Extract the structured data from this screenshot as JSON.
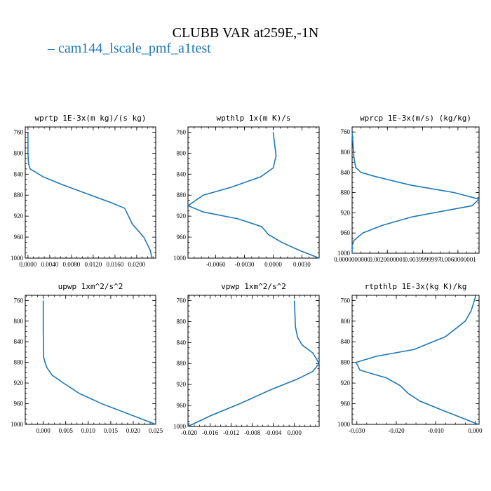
{
  "title": "CLUBB VAR at259E,-1N",
  "legend": {
    "label": "cam144_lscale_pmf_a1test",
    "color": "#1f77b4"
  },
  "chart_data": [
    {
      "type": "line",
      "title": "wprtp  1E-3x(m kg)/(s kg)",
      "xlim": [
        -0.0005,
        0.0235
      ],
      "ylim": [
        1000,
        750
      ],
      "x_ticks": [
        0.0,
        0.004,
        0.008,
        0.012,
        0.016,
        0.02
      ],
      "x_tick_labels": [
        "0.0000",
        "0.0040",
        "0.0080",
        "0.0120",
        "0.0160",
        "0.0200"
      ],
      "y_ticks": [
        760,
        800,
        840,
        880,
        920,
        960,
        1000
      ],
      "y_tick_labels": [
        "760",
        "800",
        "840",
        "880",
        "920",
        "960",
        "1000"
      ],
      "series": [
        {
          "color": "#1f77b4",
          "x": [
            0.0,
            0.0,
            0.0001,
            0.0004,
            0.0028,
            0.0063,
            0.0155,
            0.0178,
            0.0192,
            0.0213,
            0.0225,
            0.0228
          ],
          "y": [
            760,
            800,
            820,
            830,
            845,
            860,
            895,
            905,
            935,
            960,
            985,
            1000
          ]
        }
      ]
    },
    {
      "type": "line",
      "title": "wpthlp  1x(m K)/s",
      "xlim": [
        -0.0089,
        0.0048
      ],
      "ylim": [
        1000,
        750
      ],
      "x_ticks": [
        -0.006,
        -0.003,
        0.0,
        0.003
      ],
      "x_tick_labels": [
        "-0.0060",
        "-0.0030",
        "0.0000",
        "0.0030"
      ],
      "y_ticks": [
        760,
        800,
        840,
        880,
        920,
        960,
        1000
      ],
      "y_tick_labels": [
        "760",
        "800",
        "840",
        "880",
        "920",
        "960",
        "1000"
      ],
      "series": [
        {
          "color": "#1f77b4",
          "x": [
            0.0,
            0.0003,
            0.0,
            -0.0013,
            -0.0044,
            -0.0073,
            -0.0089,
            -0.0073,
            -0.0037,
            -0.0012,
            -0.0005,
            0.0009,
            0.0027,
            0.0048
          ],
          "y": [
            760,
            805,
            828,
            845,
            865,
            880,
            900,
            912,
            925,
            940,
            955,
            970,
            985,
            1000
          ]
        }
      ]
    },
    {
      "type": "line",
      "title": "wprcp  1E-3x(m/s) (kg/kg)",
      "xlim": [
        0.0,
        0.0072
      ],
      "ylim": [
        1000,
        750
      ],
      "x_ticks": [
        0.0,
        0.0020000001,
        0.0039999997,
        0.0060000001
      ],
      "x_tick_labels": [
        "0.0000000000",
        "0.0020000001",
        "0.0039999997",
        "0.0060000001"
      ],
      "y_ticks": [
        760,
        800,
        840,
        880,
        920,
        960,
        1000
      ],
      "y_tick_labels": [
        "760",
        "800",
        "840",
        "880",
        "920",
        "960",
        "1000"
      ],
      "series": [
        {
          "color": "#1f77b4",
          "x": [
            0.0,
            0.0001,
            0.0002,
            0.0005,
            0.0013,
            0.0033,
            0.0058,
            0.0072,
            0.0068,
            0.0034,
            0.0017,
            0.0006,
            0.0001,
            0.0,
            0.0
          ],
          "y": [
            760,
            810,
            830,
            840,
            848,
            865,
            880,
            893,
            906,
            928,
            945,
            960,
            975,
            985,
            1000
          ]
        }
      ]
    },
    {
      "type": "line",
      "title": "upwp  1xm^2/s^2",
      "xlim": [
        -0.004,
        0.025
      ],
      "ylim": [
        1000,
        750
      ],
      "x_ticks": [
        0.0,
        0.005,
        0.01,
        0.015,
        0.02,
        0.025
      ],
      "x_tick_labels": [
        "0.000",
        "0.005",
        "0.010",
        "0.015",
        "0.020",
        "0.025"
      ],
      "y_ticks": [
        760,
        800,
        840,
        880,
        920,
        960,
        1000
      ],
      "y_tick_labels": [
        "760",
        "800",
        "840",
        "880",
        "920",
        "960",
        "1000"
      ],
      "series": [
        {
          "color": "#1f77b4",
          "x": [
            0.0,
            0.0,
            0.0001,
            0.0004,
            0.0008,
            0.002,
            0.0045,
            0.008,
            0.013,
            0.019,
            0.025
          ],
          "y": [
            760,
            820,
            870,
            880,
            890,
            905,
            920,
            940,
            960,
            980,
            1000
          ]
        }
      ]
    },
    {
      "type": "line",
      "title": "vpwp  1xm^2/s^2",
      "xlim": [
        -0.0202,
        0.0047
      ],
      "ylim": [
        1000,
        750
      ],
      "x_ticks": [
        -0.02,
        -0.016,
        -0.012,
        -0.008,
        -0.004,
        0.0
      ],
      "x_tick_labels": [
        "-0.020",
        "-0.016",
        "-0.012",
        "-0.008",
        "-0.004",
        "0.000"
      ],
      "y_ticks": [
        760,
        800,
        840,
        880,
        920,
        960,
        1000
      ],
      "y_tick_labels": [
        "760",
        "800",
        "840",
        "880",
        "920",
        "960",
        "1000"
      ],
      "series": [
        {
          "color": "#1f77b4",
          "x": [
            0.0,
            0.0002,
            0.0006,
            0.0015,
            0.0035,
            0.0047,
            0.0035,
            0.0005,
            -0.0045,
            -0.01,
            -0.016,
            -0.0202
          ],
          "y": [
            760,
            810,
            830,
            845,
            860,
            880,
            895,
            910,
            930,
            955,
            980,
            1000
          ]
        }
      ]
    },
    {
      "type": "line",
      "title": "rtpthlp  1E-3x(kg K)/kg",
      "xlim": [
        -0.0312,
        0.001
      ],
      "ylim": [
        1000,
        750
      ],
      "x_ticks": [
        -0.03,
        -0.02,
        -0.01,
        0.0
      ],
      "x_tick_labels": [
        "-0.030",
        "-0.020",
        "-0.010",
        "0.000"
      ],
      "y_ticks": [
        760,
        800,
        840,
        880,
        920,
        960,
        1000
      ],
      "y_tick_labels": [
        "760",
        "800",
        "840",
        "880",
        "920",
        "960",
        "1000"
      ],
      "series": [
        {
          "color": "#1f77b4",
          "x": [
            0.0,
            -0.001,
            -0.0025,
            -0.0075,
            -0.0155,
            -0.025,
            -0.0302,
            -0.0292,
            -0.0225,
            -0.019,
            -0.017,
            -0.014,
            -0.0085,
            -0.0025,
            0.0008
          ],
          "y": [
            755,
            780,
            800,
            830,
            855,
            868,
            880,
            895,
            910,
            925,
            940,
            955,
            972,
            990,
            1000
          ]
        }
      ]
    }
  ]
}
